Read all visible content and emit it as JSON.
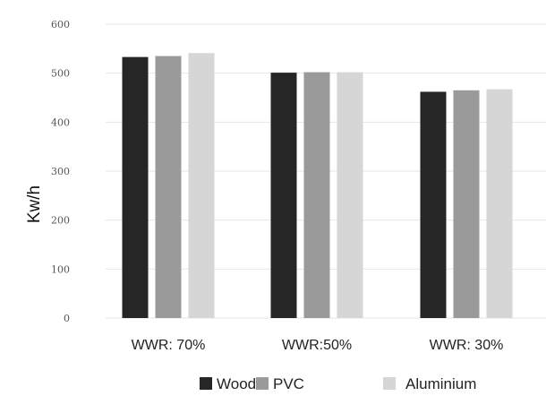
{
  "chart_data": {
    "type": "bar",
    "title": "",
    "xlabel": "",
    "ylabel": "Kw/h",
    "ylim": [
      0,
      600
    ],
    "yticks": [
      0,
      100,
      200,
      300,
      400,
      500,
      600
    ],
    "grid": true,
    "legend_position": "bottom",
    "categories": [
      "WWR: 70%",
      "WWR:50%",
      "WWR: 30%"
    ],
    "series": [
      {
        "name": "Wood",
        "color": "#262626",
        "values": [
          533,
          501,
          462
        ]
      },
      {
        "name": "PVC",
        "color": "#9a9a9a",
        "values": [
          535,
          502,
          465
        ]
      },
      {
        "name": "Aluminium",
        "color": "#d6d6d6",
        "values": [
          541,
          502,
          467
        ]
      }
    ]
  }
}
